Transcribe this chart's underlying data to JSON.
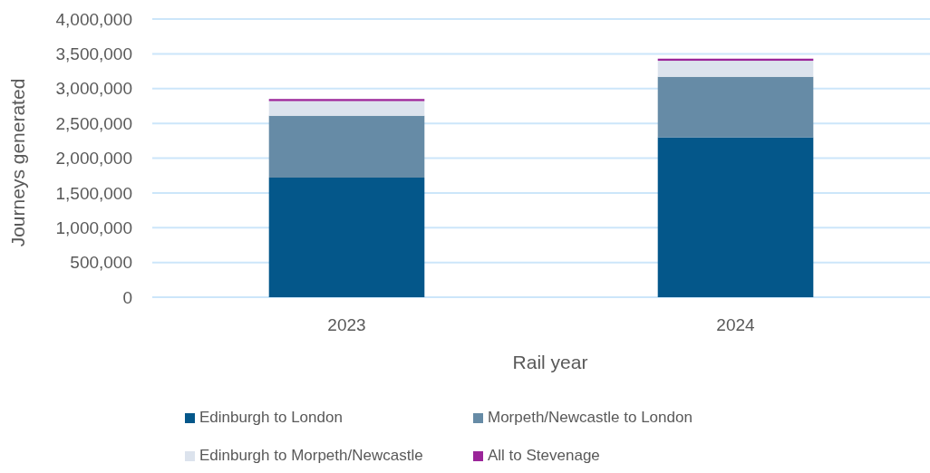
{
  "chart_data": {
    "type": "bar",
    "stacked": true,
    "xlabel": "Rail year",
    "ylabel": "Journeys generated",
    "categories": [
      "2023",
      "2024"
    ],
    "series": [
      {
        "name": "Edinburgh to London",
        "color": "#04578a",
        "values": [
          1720000,
          2300000
        ]
      },
      {
        "name": "Morpeth/Newcastle to London",
        "color": "#668ba6",
        "values": [
          890000,
          870000
        ]
      },
      {
        "name": "Edinburgh to Morpeth/Newcastle",
        "color": "#dce3ed",
        "values": [
          210000,
          230000
        ]
      },
      {
        "name": "All to Stevenage",
        "color": "#9b2599",
        "values": [
          30000,
          30000
        ]
      }
    ],
    "ylim": [
      0,
      4000000
    ],
    "yticks": [
      {
        "value": 0,
        "label": "0"
      },
      {
        "value": 500000,
        "label": "500,000"
      },
      {
        "value": 1000000,
        "label": "1,000,000"
      },
      {
        "value": 1500000,
        "label": "1,500,000"
      },
      {
        "value": 2000000,
        "label": "2,000,000"
      },
      {
        "value": 2500000,
        "label": "2,500,000"
      },
      {
        "value": 3000000,
        "label": "3,000,000"
      },
      {
        "value": 3500000,
        "label": "3,500,000"
      },
      {
        "value": 4000000,
        "label": "4,000,000"
      }
    ],
    "grid": "y",
    "legend": "bottom"
  }
}
